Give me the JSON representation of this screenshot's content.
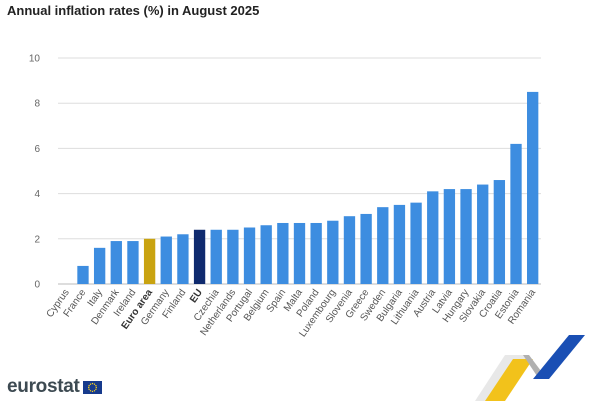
{
  "title": "Annual inflation rates (%) in August 2025",
  "logo_text": "eurostat",
  "colors": {
    "default_bar": "#3d8de0",
    "euro_area_bar": "#c9a310",
    "eu_bar": "#0f2a6e",
    "grid": "#dddddd",
    "brand_yellow": "#f2c21b",
    "brand_blue": "#1a4fb4"
  },
  "chart_data": {
    "type": "bar",
    "title": "Annual inflation rates (%) in August 2025",
    "xlabel": "",
    "ylabel": "",
    "ylim": [
      0,
      10
    ],
    "yticks": [
      0,
      2,
      4,
      6,
      8,
      10
    ],
    "grid": true,
    "categories": [
      "Cyprus",
      "France",
      "Italy",
      "Denmark",
      "Ireland",
      "Euro area",
      "Germany",
      "Finland",
      "EU",
      "Czechia",
      "Netherlands",
      "Portugal",
      "Belgium",
      "Spain",
      "Malta",
      "Poland",
      "Luxembourg",
      "Slovenia",
      "Greece",
      "Sweden",
      "Bulgaria",
      "Lithuania",
      "Austria",
      "Latvia",
      "Hungary",
      "Slovakia",
      "Croatia",
      "Estonia",
      "Romania"
    ],
    "values": [
      0.0,
      0.8,
      1.6,
      1.9,
      1.9,
      2.0,
      2.1,
      2.2,
      2.4,
      2.4,
      2.4,
      2.5,
      2.6,
      2.7,
      2.7,
      2.7,
      2.8,
      3.0,
      3.1,
      3.4,
      3.5,
      3.6,
      4.1,
      4.2,
      4.2,
      4.4,
      4.6,
      6.2,
      8.5
    ],
    "highlights": {
      "Euro area": "euro_area_bar",
      "EU": "eu_bar"
    },
    "bold_labels": [
      "Euro area",
      "EU"
    ]
  }
}
